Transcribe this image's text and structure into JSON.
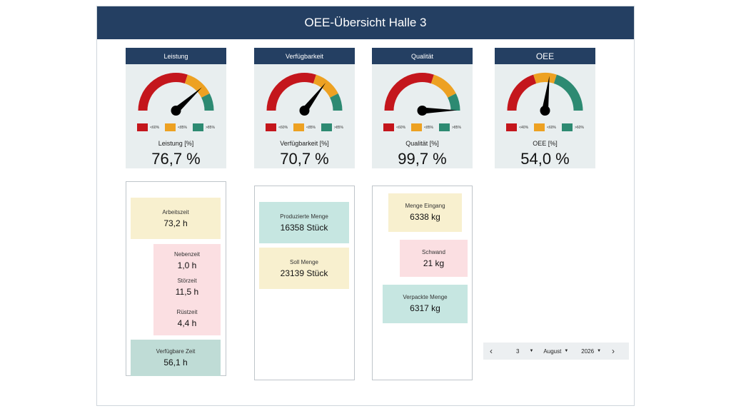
{
  "header": {
    "title": "OEE-Übersicht Halle 3"
  },
  "colors": {
    "red": "#c4161c",
    "orange": "#eda122",
    "teal": "#2d8a72",
    "navy": "#243f62"
  },
  "gauges": [
    {
      "title": "Leistung",
      "value_label": "Leistung [%]",
      "value": "76,7 %",
      "fraction": 0.767,
      "thresholds": [
        0.6,
        0.85
      ],
      "legend": [
        "<60%",
        "<85%",
        ">85%"
      ]
    },
    {
      "title": "Verfügbarkeit",
      "value_label": "Verfügbarkeit [%]",
      "value": "70,7 %",
      "fraction": 0.707,
      "thresholds": [
        0.6,
        0.85
      ],
      "legend": [
        "<60%",
        "<85%",
        ">85%"
      ]
    },
    {
      "title": "Qualität",
      "value_label": "Qualität [%]",
      "value": "99,7 %",
      "fraction": 0.997,
      "thresholds": [
        0.6,
        0.85
      ],
      "legend": [
        "<60%",
        "<85%",
        ">85%"
      ]
    },
    {
      "title": "OEE",
      "value_label": "OEE [%]",
      "value": "54,0 %",
      "fraction": 0.54,
      "thresholds": [
        0.4,
        0.6
      ],
      "legend": [
        "<40%",
        "<60%",
        ">60%"
      ]
    }
  ],
  "time_panel": {
    "arbeitszeit": {
      "label": "Arbeitszeit",
      "value": "73,2 h"
    },
    "nebenzeit": {
      "label": "Nebenzeit",
      "value": "1,0 h"
    },
    "stoerzeit": {
      "label": "Störzeit",
      "value": "11,5 h"
    },
    "ruestzeit": {
      "label": "Rüstzeit",
      "value": "4,4 h"
    },
    "verfuegbare_zeit": {
      "label": "Verfügbare Zeit",
      "value": "56,1 h"
    }
  },
  "quantity_panel": {
    "produziert": {
      "label": "Produzierte Menge",
      "value": "16358 Stück"
    },
    "soll": {
      "label": "Soll Menge",
      "value": "23139 Stück"
    }
  },
  "material_panel": {
    "eingang": {
      "label": "Menge Eingang",
      "value": "6338 kg"
    },
    "schwand": {
      "label": "Schwand",
      "value": "21 kg"
    },
    "verpackt": {
      "label": "Verpackte Menge",
      "value": "6317 kg"
    }
  },
  "date_picker": {
    "day": "3",
    "month": "August",
    "year": "2026",
    "prev_icon": "chevron-left-icon",
    "next_icon": "chevron-right-icon"
  }
}
